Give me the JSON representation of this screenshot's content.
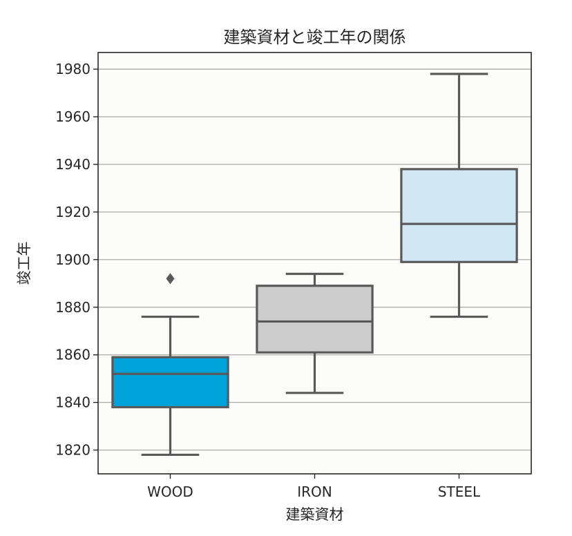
{
  "chart_data": {
    "type": "box",
    "title": "建築資材と竣工年の関係",
    "xlabel": "建築資材",
    "ylabel": "竣工年",
    "categories": [
      "WOOD",
      "IRON",
      "STEEL"
    ],
    "ylim": [
      1810,
      1987
    ],
    "yticks": [
      1820,
      1840,
      1860,
      1880,
      1900,
      1920,
      1940,
      1960,
      1980
    ],
    "grid": "horizontal",
    "boxes": [
      {
        "category": "WOOD",
        "whisker_low": 1818,
        "q1": 1838,
        "median": 1852,
        "q3": 1859,
        "whisker_high": 1876,
        "outliers": [
          1892
        ],
        "color": "#00a3d9"
      },
      {
        "category": "IRON",
        "whisker_low": 1844,
        "q1": 1861,
        "median": 1874,
        "q3": 1889,
        "whisker_high": 1894,
        "outliers": [],
        "color": "#cccccc"
      },
      {
        "category": "STEEL",
        "whisker_low": 1876,
        "q1": 1899,
        "median": 1915,
        "q3": 1938,
        "whisker_high": 1978,
        "outliers": [],
        "color": "#d1e8f4"
      }
    ]
  }
}
